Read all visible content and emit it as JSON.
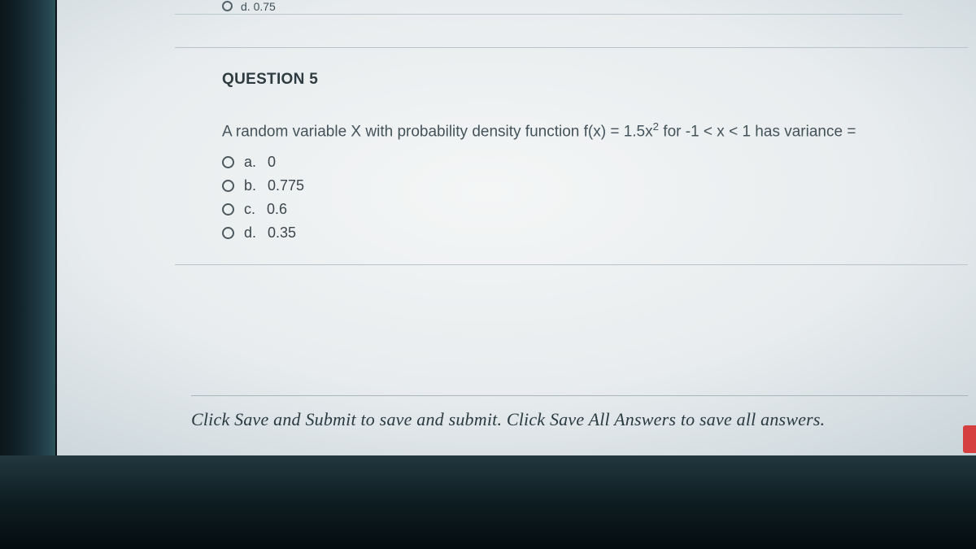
{
  "colors": {
    "text_primary": "#2e3b40",
    "text_body": "#445359",
    "divider": "#b7c4ca",
    "radio_border": "#4c585e",
    "bezel_dark": "#0b161a",
    "badge": "#d63f3f"
  },
  "prev_question": {
    "last_visible_option": "d. 0.75"
  },
  "question": {
    "header": "QUESTION 5",
    "text_prefix": "A random variable X with probability density function f(x) = 1.5x",
    "text_exponent": "2",
    "text_suffix": " for -1 < x < 1 has variance =",
    "options": [
      {
        "letter": "a.",
        "value": "0"
      },
      {
        "letter": "b.",
        "value": "0.775"
      },
      {
        "letter": "c.",
        "value": "0.6"
      },
      {
        "letter": "d.",
        "value": "0.35"
      }
    ]
  },
  "footer": "Click Save and Submit to save and submit. Click Save All Answers to save all answers."
}
